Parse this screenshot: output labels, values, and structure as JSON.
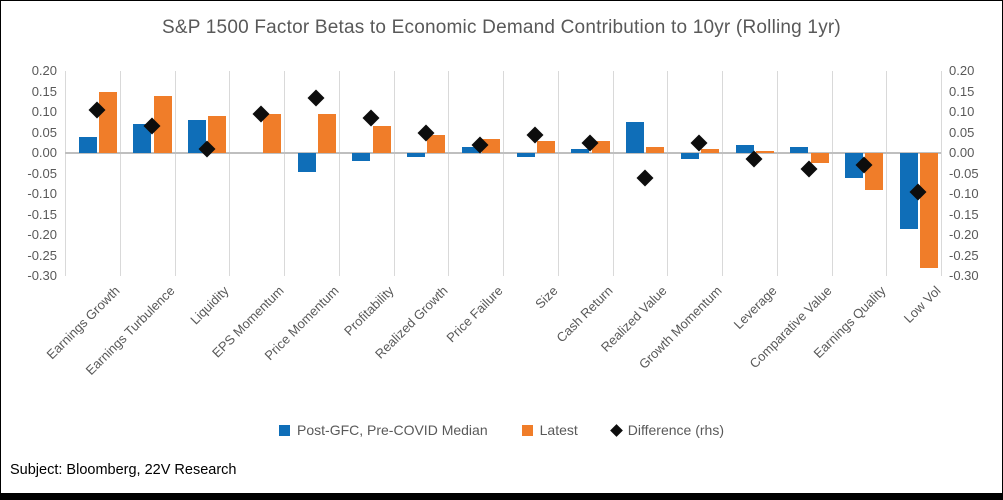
{
  "title": "S&P 1500 Factor Betas to Economic Demand Contribution to 10yr (Rolling 1yr)",
  "footer": "Subject: Bloomberg, 22V Research",
  "colors": {
    "median_bar": "#0F6EB8",
    "latest_bar": "#F07D29",
    "difference_marker": "#0D0D0D",
    "gridline": "#D9D9D9",
    "zero_line": "#BFBFBF",
    "axis_text": "#595959",
    "title_text": "#595959",
    "background": "#FFFFFF",
    "border": "#000000"
  },
  "chart_data": {
    "type": "bar",
    "title": "S&P 1500 Factor Betas to Economic Demand Contribution to 10yr (Rolling 1yr)",
    "categories": [
      "Earnings Growth",
      "Earnings Turbulence",
      "Liquidity",
      "EPS Momentum",
      "Price Momentum",
      "Profitability",
      "Realized Growth",
      "Price Failure",
      "Size",
      "Cash Return",
      "Realized Value",
      "Growth Momentum",
      "Leverage",
      "Comparative Value",
      "Earnings Quality",
      "Low Vol"
    ],
    "series": [
      {
        "name": "Post-GFC, Pre-COVID Median",
        "type": "bar",
        "axis": "left",
        "color": "#0F6EB8",
        "values": [
          0.04,
          0.07,
          0.08,
          0.0,
          -0.045,
          -0.02,
          -0.01,
          0.015,
          -0.01,
          0.01,
          0.075,
          -0.015,
          0.02,
          0.015,
          -0.06,
          -0.185
        ]
      },
      {
        "name": "Latest",
        "type": "bar",
        "axis": "left",
        "color": "#F07D29",
        "values": [
          0.15,
          0.14,
          0.09,
          0.095,
          0.095,
          0.065,
          0.045,
          0.035,
          0.03,
          0.03,
          0.015,
          0.01,
          0.005,
          -0.025,
          -0.09,
          -0.28
        ]
      },
      {
        "name": "Difference (rhs)",
        "type": "diamond",
        "axis": "right",
        "color": "#0D0D0D",
        "values": [
          0.105,
          0.065,
          0.01,
          0.095,
          0.135,
          0.085,
          0.05,
          0.02,
          0.045,
          0.025,
          -0.06,
          0.025,
          -0.015,
          -0.04,
          -0.03,
          -0.095
        ]
      }
    ],
    "y_axis": {
      "min": -0.3,
      "max": 0.2,
      "step": 0.05,
      "tick_labels": [
        "0.20",
        "0.15",
        "0.10",
        "0.05",
        "0.00",
        "-0.05",
        "-0.10",
        "-0.15",
        "-0.20",
        "-0.25",
        "-0.30"
      ],
      "sides": [
        "left",
        "right"
      ]
    },
    "grid": {
      "vertical": true,
      "horizontal": false
    },
    "legend_position": "bottom",
    "xlabel": "",
    "ylabel": ""
  }
}
